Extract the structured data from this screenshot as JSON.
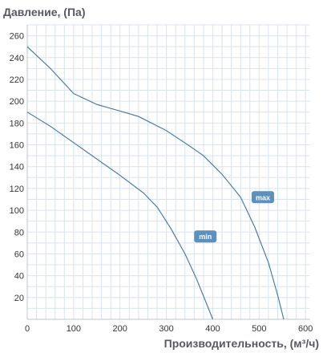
{
  "chart_data": {
    "type": "line",
    "ylabel": "Давление, (Па)",
    "xlabel": "Производительность, (м³/ч)",
    "xlim": [
      0,
      610
    ],
    "ylim": [
      0,
      270
    ],
    "x_ticks": [
      0,
      100,
      200,
      300,
      400,
      500,
      600
    ],
    "y_ticks": [
      20,
      40,
      60,
      80,
      100,
      120,
      140,
      160,
      180,
      200,
      220,
      240,
      260
    ],
    "grid": true,
    "series": [
      {
        "name": "max",
        "points": [
          [
            0,
            250
          ],
          [
            50,
            230
          ],
          [
            100,
            207
          ],
          [
            150,
            197
          ],
          [
            200,
            191
          ],
          [
            240,
            186
          ],
          [
            300,
            173
          ],
          [
            350,
            159
          ],
          [
            380,
            150
          ],
          [
            420,
            133
          ],
          [
            460,
            112
          ],
          [
            490,
            85
          ],
          [
            520,
            52
          ],
          [
            540,
            22
          ],
          [
            553,
            0
          ]
        ]
      },
      {
        "name": "min",
        "points": [
          [
            0,
            190
          ],
          [
            50,
            177
          ],
          [
            100,
            162
          ],
          [
            150,
            147
          ],
          [
            200,
            132
          ],
          [
            250,
            116
          ],
          [
            280,
            103
          ],
          [
            310,
            83
          ],
          [
            340,
            60
          ],
          [
            365,
            37
          ],
          [
            385,
            16
          ],
          [
            400,
            0
          ]
        ]
      }
    ],
    "labels": [
      {
        "text": "max",
        "series": "max",
        "x": 508,
        "y": 112
      },
      {
        "text": "min",
        "series": "min",
        "x": 384,
        "y": 76
      }
    ],
    "line_color": "#3b73a5",
    "badge_color": "#5d90bc"
  }
}
